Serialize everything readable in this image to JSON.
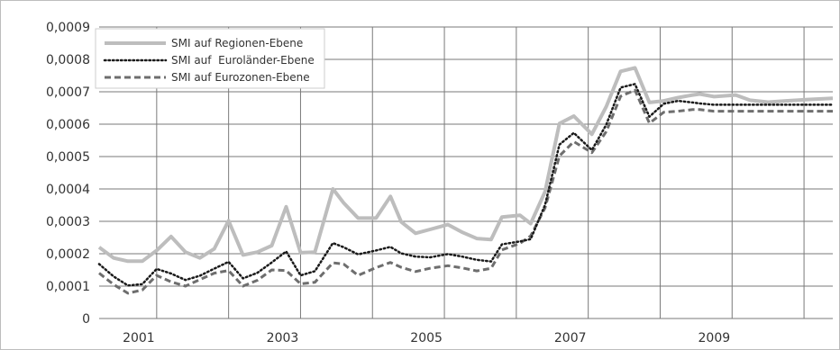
{
  "chart_data": {
    "type": "line",
    "ylim": [
      0,
      0.0009
    ],
    "xlim": [
      2000.2,
      2010.4
    ],
    "grid": true,
    "legend_position": "top-left",
    "y_ticks": [
      "0",
      "0,0001",
      "0,0002",
      "0,0003",
      "0,0004",
      "0,0005",
      "0,0006",
      "0,0007",
      "0,0008",
      "0,0009"
    ],
    "x_tick_labels": [
      "2001",
      "2003",
      "2005",
      "2007",
      "2009"
    ],
    "x_tick_positions": [
      2000.75,
      2002.75,
      2004.75,
      2006.75,
      2008.75
    ],
    "series": [
      {
        "name": "SMI auf Regionen-Ebene",
        "color": "#bdbdbd",
        "style": "solid",
        "points": [
          [
            2000.2,
            0.00022
          ],
          [
            2000.4,
            0.000187
          ],
          [
            2000.6,
            0.000177
          ],
          [
            2000.8,
            0.000177
          ],
          [
            2001.0,
            0.00021
          ],
          [
            2001.2,
            0.000253
          ],
          [
            2001.4,
            0.000205
          ],
          [
            2001.6,
            0.000187
          ],
          [
            2001.8,
            0.000215
          ],
          [
            2002.0,
            0.000302
          ],
          [
            2002.2,
            0.000196
          ],
          [
            2002.4,
            0.000205
          ],
          [
            2002.6,
            0.000225
          ],
          [
            2002.8,
            0.000345
          ],
          [
            2003.0,
            0.000203
          ],
          [
            2003.2,
            0.000205
          ],
          [
            2003.45,
            0.0004
          ],
          [
            2003.6,
            0.000357
          ],
          [
            2003.8,
            0.00031
          ],
          [
            2004.05,
            0.00031
          ],
          [
            2004.25,
            0.000377
          ],
          [
            2004.4,
            0.000298
          ],
          [
            2004.6,
            0.000263
          ],
          [
            2004.8,
            0.000275
          ],
          [
            2005.05,
            0.00029
          ],
          [
            2005.25,
            0.000266
          ],
          [
            2005.45,
            0.000247
          ],
          [
            2005.65,
            0.000244
          ],
          [
            2005.8,
            0.000313
          ],
          [
            2006.05,
            0.000319
          ],
          [
            2006.2,
            0.000293
          ],
          [
            2006.4,
            0.000392
          ],
          [
            2006.6,
            0.000602
          ],
          [
            2006.8,
            0.000625
          ],
          [
            2007.05,
            0.000569
          ],
          [
            2007.25,
            0.000654
          ],
          [
            2007.45,
            0.000763
          ],
          [
            2007.65,
            0.000774
          ],
          [
            2007.85,
            0.000667
          ],
          [
            2008.05,
            0.000672
          ],
          [
            2008.25,
            0.000682
          ],
          [
            2008.45,
            0.00069
          ],
          [
            2008.55,
            0.000693
          ],
          [
            2008.75,
            0.000685
          ],
          [
            2009.05,
            0.00069
          ],
          [
            2009.25,
            0.000674
          ],
          [
            2009.5,
            0.000668
          ],
          [
            2009.75,
            0.000672
          ],
          [
            2010.05,
            0.000676
          ],
          [
            2010.4,
            0.00068
          ]
        ]
      },
      {
        "name": "SMI auf  Euroländer-Ebene",
        "color": "#1a1a1a",
        "style": "dotted",
        "points": [
          [
            2000.2,
            0.000168
          ],
          [
            2000.4,
            0.00013
          ],
          [
            2000.6,
            0.000102
          ],
          [
            2000.8,
            0.000106
          ],
          [
            2001.0,
            0.000153
          ],
          [
            2001.2,
            0.000139
          ],
          [
            2001.4,
            0.000119
          ],
          [
            2001.6,
            0.000132
          ],
          [
            2001.8,
            0.000154
          ],
          [
            2002.0,
            0.000175
          ],
          [
            2002.2,
            0.000124
          ],
          [
            2002.4,
            0.000141
          ],
          [
            2002.6,
            0.000173
          ],
          [
            2002.8,
            0.000207
          ],
          [
            2003.0,
            0.000133
          ],
          [
            2003.2,
            0.000146
          ],
          [
            2003.45,
            0.000233
          ],
          [
            2003.6,
            0.00022
          ],
          [
            2003.8,
            0.000198
          ],
          [
            2004.05,
            0.00021
          ],
          [
            2004.25,
            0.000221
          ],
          [
            2004.4,
            0.000201
          ],
          [
            2004.6,
            0.000191
          ],
          [
            2004.8,
            0.000189
          ],
          [
            2005.05,
            0.000199
          ],
          [
            2005.25,
            0.000191
          ],
          [
            2005.45,
            0.000181
          ],
          [
            2005.65,
            0.000176
          ],
          [
            2005.8,
            0.000229
          ],
          [
            2006.05,
            0.000238
          ],
          [
            2006.2,
            0.000245
          ],
          [
            2006.4,
            0.000351
          ],
          [
            2006.6,
            0.000537
          ],
          [
            2006.8,
            0.000573
          ],
          [
            2007.05,
            0.00052
          ],
          [
            2007.25,
            0.000598
          ],
          [
            2007.45,
            0.000713
          ],
          [
            2007.65,
            0.000724
          ],
          [
            2007.85,
            0.000623
          ],
          [
            2008.05,
            0.000663
          ],
          [
            2008.25,
            0.000672
          ],
          [
            2008.45,
            0.000667
          ],
          [
            2008.55,
            0.000664
          ],
          [
            2008.75,
            0.00066
          ],
          [
            2009.05,
            0.00066
          ],
          [
            2009.25,
            0.00066
          ],
          [
            2009.5,
            0.00066
          ],
          [
            2009.75,
            0.00066
          ],
          [
            2010.05,
            0.00066
          ],
          [
            2010.4,
            0.00066
          ]
        ]
      },
      {
        "name": "SMI auf Eurozonen-Ebene",
        "color": "#6e6e6e",
        "style": "dashed",
        "points": [
          [
            2000.2,
            0.00014
          ],
          [
            2000.4,
            0.000105
          ],
          [
            2000.6,
            7.8e-05
          ],
          [
            2000.8,
            8.8e-05
          ],
          [
            2001.0,
            0.000133
          ],
          [
            2001.2,
            0.000113
          ],
          [
            2001.4,
            0.0001
          ],
          [
            2001.6,
            0.00012
          ],
          [
            2001.8,
            0.00014
          ],
          [
            2002.0,
            0.000148
          ],
          [
            2002.2,
            0.0001
          ],
          [
            2002.4,
            0.000118
          ],
          [
            2002.6,
            0.00015
          ],
          [
            2002.8,
            0.000148
          ],
          [
            2003.0,
            0.000107
          ],
          [
            2003.2,
            0.000112
          ],
          [
            2003.45,
            0.000172
          ],
          [
            2003.6,
            0.000168
          ],
          [
            2003.8,
            0.000133
          ],
          [
            2004.05,
            0.000157
          ],
          [
            2004.25,
            0.000173
          ],
          [
            2004.4,
            0.000158
          ],
          [
            2004.6,
            0.000145
          ],
          [
            2004.8,
            0.000155
          ],
          [
            2005.05,
            0.000163
          ],
          [
            2005.25,
            0.000156
          ],
          [
            2005.45,
            0.000147
          ],
          [
            2005.65,
            0.000155
          ],
          [
            2005.8,
            0.000212
          ],
          [
            2006.05,
            0.000232
          ],
          [
            2006.2,
            0.000255
          ],
          [
            2006.4,
            0.000342
          ],
          [
            2006.6,
            0.000502
          ],
          [
            2006.8,
            0.000546
          ],
          [
            2007.05,
            0.000512
          ],
          [
            2007.25,
            0.000577
          ],
          [
            2007.45,
            0.000686
          ],
          [
            2007.65,
            0.000705
          ],
          [
            2007.85,
            0.000603
          ],
          [
            2008.05,
            0.000637
          ],
          [
            2008.25,
            0.00064
          ],
          [
            2008.45,
            0.000645
          ],
          [
            2008.55,
            0.000645
          ],
          [
            2008.75,
            0.00064
          ],
          [
            2009.05,
            0.00064
          ],
          [
            2009.25,
            0.00064
          ],
          [
            2009.5,
            0.00064
          ],
          [
            2009.75,
            0.00064
          ],
          [
            2010.05,
            0.00064
          ],
          [
            2010.4,
            0.00064
          ]
        ]
      }
    ]
  }
}
